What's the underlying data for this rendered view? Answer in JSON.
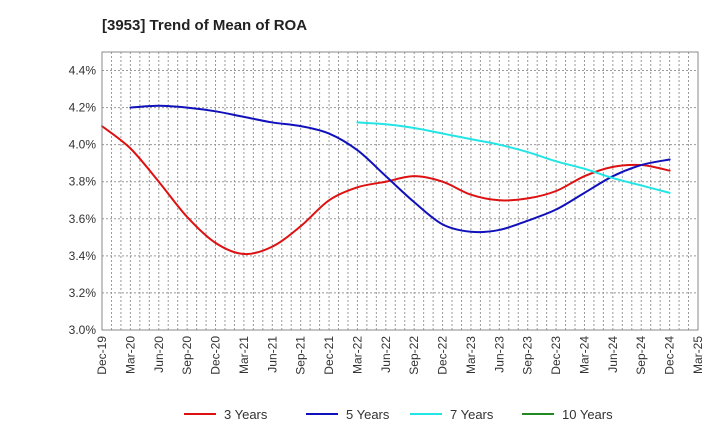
{
  "chart_data": {
    "type": "line",
    "title": "[3953]  Trend of Mean of ROA",
    "xlabel": "",
    "ylabel": "",
    "x_labels": [
      "Dec-19",
      "Mar-20",
      "Jun-20",
      "Sep-20",
      "Dec-20",
      "Mar-21",
      "Jun-21",
      "Sep-21",
      "Dec-21",
      "Mar-22",
      "Jun-22",
      "Sep-22",
      "Dec-22",
      "Mar-23",
      "Jun-23",
      "Sep-23",
      "Dec-23",
      "Mar-24",
      "Jun-24",
      "Sep-24",
      "Dec-24",
      "Mar-25"
    ],
    "y_ticks": [
      3.0,
      3.2,
      3.4,
      3.6,
      3.8,
      4.0,
      4.2,
      4.4
    ],
    "y_tick_labels": [
      "3.0%",
      "3.2%",
      "3.4%",
      "3.6%",
      "3.8%",
      "4.0%",
      "4.2%",
      "4.4%"
    ],
    "ylim": [
      3.0,
      4.5
    ],
    "grid": true,
    "legend_position": "bottom",
    "series": [
      {
        "name": "3 Years",
        "color": "#dd1111",
        "values": [
          4.1,
          3.98,
          3.8,
          3.61,
          3.47,
          3.41,
          3.45,
          3.56,
          3.7,
          3.77,
          3.8,
          3.83,
          3.8,
          3.73,
          3.7,
          3.71,
          3.75,
          3.83,
          3.88,
          3.89,
          3.86,
          null
        ]
      },
      {
        "name": "5 Years",
        "color": "#1111bb",
        "values": [
          null,
          4.2,
          4.21,
          4.2,
          4.18,
          4.15,
          4.12,
          4.1,
          4.06,
          3.97,
          3.83,
          3.69,
          3.57,
          3.53,
          3.54,
          3.59,
          3.65,
          3.74,
          3.83,
          3.89,
          3.92,
          null
        ]
      },
      {
        "name": "7 Years",
        "color": "#22e5e5",
        "values": [
          null,
          null,
          null,
          null,
          null,
          null,
          null,
          null,
          null,
          4.12,
          4.11,
          4.09,
          4.06,
          4.03,
          4.0,
          3.96,
          3.91,
          3.87,
          3.82,
          3.78,
          3.74,
          null
        ]
      },
      {
        "name": "10 Years",
        "color": "#228822",
        "values": []
      }
    ]
  }
}
